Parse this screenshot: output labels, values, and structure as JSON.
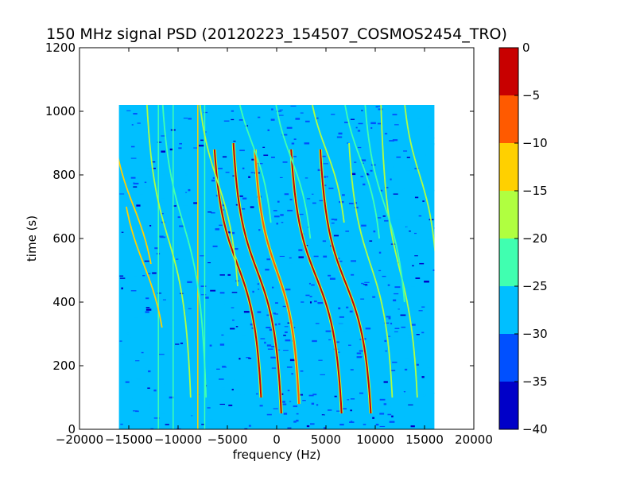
{
  "chart_data": {
    "type": "heatmap",
    "title": "150 MHz signal PSD (20120223_154507_COSMOS2454_TRO)",
    "xlabel": "frequency (Hz)",
    "ylabel": "time (s)",
    "xlim": [
      -20000,
      20000
    ],
    "ylim": [
      0,
      1200
    ],
    "xticks": [
      -20000,
      -15000,
      -10000,
      -5000,
      0,
      5000,
      10000,
      15000,
      20000
    ],
    "yticks": [
      0,
      200,
      400,
      600,
      800,
      1000
    ],
    "data_extent": {
      "x": [
        -16000,
        16000
      ],
      "y": [
        0,
        1020
      ]
    },
    "background_level": -28,
    "colorbar": {
      "ticks": [
        0,
        -5,
        -10,
        -15,
        -20,
        -25,
        -30,
        -35,
        -40
      ],
      "range": [
        -40,
        0
      ],
      "levels": [
        {
          "from": -40,
          "to": -35,
          "color": "#0000c8"
        },
        {
          "from": -35,
          "to": -30,
          "color": "#0050ff"
        },
        {
          "from": -30,
          "to": -25,
          "color": "#00bfff"
        },
        {
          "from": -25,
          "to": -20,
          "color": "#40ffb0"
        },
        {
          "from": -20,
          "to": -15,
          "color": "#b0ff40"
        },
        {
          "from": -15,
          "to": -10,
          "color": "#ffd000"
        },
        {
          "from": -10,
          "to": -5,
          "color": "#ff5a00"
        },
        {
          "from": -5,
          "to": 0,
          "color": "#c80000"
        }
      ]
    },
    "vertical_lines": [
      {
        "x": -8000,
        "level": -12
      },
      {
        "x": -12000,
        "level": -22
      },
      {
        "x": -10500,
        "level": -22
      },
      {
        "x": -7300,
        "level": -22
      }
    ],
    "traces": [
      {
        "center_x": -14500,
        "center_t": 700,
        "amplitude": 3500,
        "steep": 180,
        "t_range": [
          520,
          1020
        ],
        "level": -12
      },
      {
        "center_x": -13500,
        "center_t": 520,
        "amplitude": 3500,
        "steep": 180,
        "t_range": [
          320,
          700
        ],
        "level": -15
      },
      {
        "center_x": -11000,
        "center_t": 600,
        "amplitude": 3000,
        "steep": 200,
        "t_range": [
          100,
          1020
        ],
        "level": -20
      },
      {
        "center_x": -9500,
        "center_t": 650,
        "amplitude": 3000,
        "steep": 200,
        "t_range": [
          100,
          1020
        ],
        "level": -22
      },
      {
        "center_x": -4000,
        "center_t": 520,
        "amplitude": 3200,
        "steep": 170,
        "t_range": [
          100,
          880
        ],
        "level": -3
      },
      {
        "center_x": -2000,
        "center_t": 500,
        "amplitude": 3200,
        "steep": 170,
        "t_range": [
          50,
          900
        ],
        "level": -3
      },
      {
        "center_x": 0,
        "center_t": 500,
        "amplitude": 3000,
        "steep": 170,
        "t_range": [
          80,
          880
        ],
        "level": -10
      },
      {
        "center_x": 4000,
        "center_t": 480,
        "amplitude": 3400,
        "steep": 170,
        "t_range": [
          50,
          880
        ],
        "level": -3
      },
      {
        "center_x": 7000,
        "center_t": 460,
        "amplitude": 3400,
        "steep": 170,
        "t_range": [
          50,
          880
        ],
        "level": -5
      },
      {
        "center_x": 9500,
        "center_t": 520,
        "amplitude": 3000,
        "steep": 180,
        "t_range": [
          100,
          900
        ],
        "level": -18
      },
      {
        "center_x": 12500,
        "center_t": 500,
        "amplitude": 2500,
        "steep": 200,
        "t_range": [
          100,
          1020
        ],
        "level": -18
      },
      {
        "center_x": 14500,
        "center_t": 800,
        "amplitude": 2500,
        "steep": 160,
        "t_range": [
          560,
          1020
        ],
        "level": -18
      },
      {
        "center_x": -6000,
        "center_t": 780,
        "amplitude": 3000,
        "steep": 180,
        "t_range": [
          450,
          1020
        ],
        "level": -18
      },
      {
        "center_x": -2500,
        "center_t": 900,
        "amplitude": 3000,
        "steep": 160,
        "t_range": [
          650,
          1020
        ],
        "level": -22
      },
      {
        "center_x": 1500,
        "center_t": 850,
        "amplitude": 3000,
        "steep": 160,
        "t_range": [
          600,
          1020
        ],
        "level": -22
      },
      {
        "center_x": 5000,
        "center_t": 880,
        "amplitude": 3000,
        "steep": 160,
        "t_range": [
          650,
          1020
        ],
        "level": -20
      },
      {
        "center_x": 8500,
        "center_t": 850,
        "amplitude": 3000,
        "steep": 160,
        "t_range": [
          600,
          1020
        ],
        "level": -22
      },
      {
        "center_x": 11000,
        "center_t": 700,
        "amplitude": 3000,
        "steep": 180,
        "t_range": [
          400,
          1020
        ],
        "level": -22
      }
    ]
  }
}
